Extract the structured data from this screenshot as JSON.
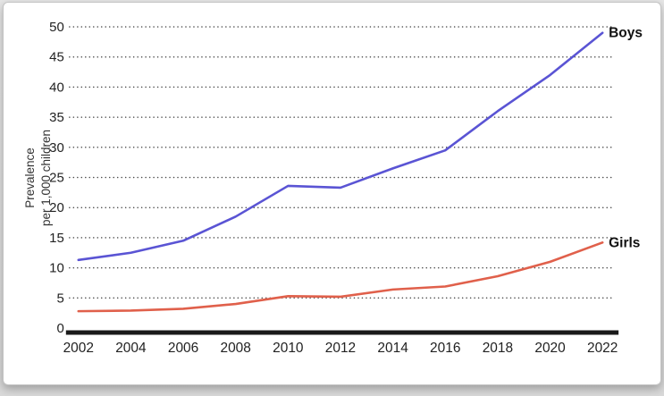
{
  "page": {
    "background_color": "#d9d9d9",
    "card_color": "#ffffff",
    "card_border_color": "#c4c4c4"
  },
  "chart_data": {
    "type": "line",
    "title": "",
    "xlabel": "",
    "ylabel_lines": [
      "Prevalence",
      "per 1,000 children"
    ],
    "x": [
      2002,
      2004,
      2006,
      2008,
      2010,
      2012,
      2014,
      2016,
      2018,
      2020,
      2022
    ],
    "xticks": [
      "2002",
      "2004",
      "2006",
      "2008",
      "2010",
      "2012",
      "2014",
      "2016",
      "2018",
      "2020",
      "2022"
    ],
    "ylim": [
      0,
      50
    ],
    "yticks": [
      0,
      5,
      10,
      15,
      20,
      25,
      30,
      35,
      40,
      45,
      50
    ],
    "grid": "horizontal-dotted",
    "legend_position": "labels-at-line-ends",
    "series": [
      {
        "name": "Boys",
        "color": "#5a54d4",
        "values": [
          11.3,
          12.5,
          14.5,
          18.5,
          23.6,
          23.3,
          26.5,
          29.5,
          36.0,
          42.0,
          49.0
        ]
      },
      {
        "name": "Girls",
        "color": "#e0604b",
        "values": [
          2.8,
          2.9,
          3.2,
          4.0,
          5.3,
          5.2,
          6.4,
          6.9,
          8.6,
          11.0,
          14.2
        ]
      }
    ],
    "axis_color": "#1a1a1a",
    "grid_color": "#4a4a4a",
    "tick_label_color": "#222222",
    "axis_title_color": "#333333",
    "series_label_color": "#111111"
  }
}
